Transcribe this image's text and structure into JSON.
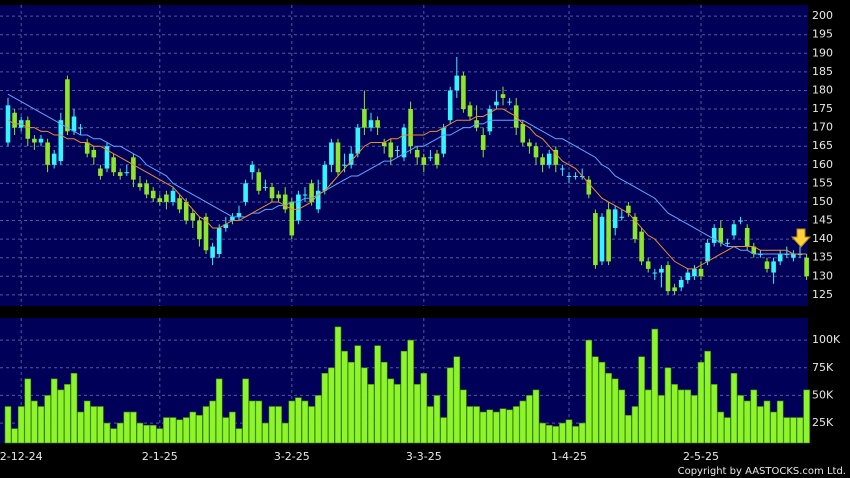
{
  "chart_data": {
    "type": "candlestick",
    "copyright": "Copyright by AASTOCKS.com Ltd.",
    "up_color": "#33f5ff",
    "down_color": "#8ee62a",
    "grid": true,
    "categories": [
      null,
      null,
      "2-12-24",
      null,
      null,
      null,
      null,
      null,
      null,
      null,
      null,
      null,
      null,
      null,
      null,
      null,
      null,
      null,
      null,
      null,
      null,
      null,
      null,
      "2-1-25",
      null,
      null,
      null,
      null,
      null,
      null,
      null,
      null,
      null,
      null,
      null,
      null,
      null,
      null,
      null,
      null,
      null,
      null,
      null,
      "3-2-25",
      null,
      null,
      null,
      null,
      null,
      null,
      null,
      null,
      null,
      null,
      null,
      null,
      null,
      null,
      null,
      null,
      null,
      null,
      null,
      "3-3-25",
      null,
      null,
      null,
      null,
      null,
      null,
      null,
      null,
      null,
      null,
      null,
      null,
      null,
      null,
      null,
      null,
      null,
      null,
      null,
      null,
      null,
      "1-4-25",
      null,
      null,
      null,
      null,
      null,
      null,
      null,
      null,
      null,
      null,
      null,
      null,
      null,
      null,
      null,
      null,
      null,
      null,
      null,
      "2-5-25",
      null,
      null,
      null,
      null,
      null,
      null,
      null,
      null,
      null,
      null,
      null,
      null,
      null,
      null,
      null,
      null
    ],
    "open": [
      166,
      174,
      170,
      172,
      167,
      166,
      166,
      160,
      161,
      183,
      169,
      170,
      166,
      164,
      159,
      159,
      162,
      158,
      158,
      162,
      155,
      155,
      153,
      151,
      152,
      150,
      151,
      150,
      147,
      145,
      146,
      135,
      136,
      143,
      145,
      146,
      150,
      158,
      158,
      154,
      154,
      152,
      152,
      150,
      145,
      152,
      155,
      148,
      153,
      160,
      166,
      160,
      160,
      163,
      175,
      170,
      172,
      166,
      166,
      164,
      162,
      175,
      164,
      162,
      162,
      163,
      163,
      172,
      180,
      184,
      176,
      172,
      168,
      169,
      176,
      179,
      177,
      176,
      171,
      166,
      165,
      162,
      160,
      164,
      159,
      157,
      157,
      157,
      156,
      147,
      134,
      148,
      143,
      146,
      149,
      146,
      142,
      134,
      131,
      131,
      133,
      127,
      127,
      129,
      130,
      132,
      134,
      139,
      143,
      139,
      141,
      145,
      143,
      138,
      136,
      134,
      131,
      134,
      136,
      135,
      136,
      135
    ],
    "high": [
      178,
      175,
      173,
      173,
      168,
      168,
      167,
      164,
      174,
      184,
      175,
      171,
      167,
      165,
      160,
      166,
      163,
      159,
      160,
      163,
      157,
      156,
      154,
      152,
      153,
      154,
      152,
      151,
      148,
      146,
      147,
      139,
      144,
      146,
      147,
      149,
      156,
      161,
      159,
      156,
      155,
      153,
      154,
      151,
      153,
      154,
      156,
      156,
      161,
      167,
      167,
      163,
      165,
      171,
      180,
      174,
      173,
      167,
      167,
      165,
      171,
      177,
      165,
      163,
      164,
      164,
      171,
      181,
      189,
      185,
      177,
      176,
      170,
      176,
      180,
      181,
      178,
      178,
      172,
      167,
      166,
      163,
      164,
      165,
      160,
      158,
      158,
      159,
      157,
      148,
      147,
      150,
      149,
      148,
      150,
      147,
      143,
      135,
      132,
      133,
      134,
      128,
      130,
      132,
      133,
      134,
      140,
      144,
      145,
      140,
      145,
      146,
      144,
      139,
      137,
      135,
      135,
      137,
      138,
      137,
      138,
      136
    ],
    "low": [
      165,
      168,
      169,
      165,
      164,
      165,
      158,
      159,
      160,
      168,
      168,
      168,
      162,
      160,
      156,
      158,
      157,
      156,
      157,
      154,
      153,
      151,
      150,
      149,
      148,
      149,
      147,
      144,
      143,
      138,
      136,
      133,
      135,
      142,
      144,
      145,
      149,
      156,
      152,
      153,
      150,
      150,
      147,
      140,
      144,
      150,
      149,
      147,
      152,
      158,
      157,
      158,
      159,
      162,
      168,
      169,
      168,
      163,
      160,
      162,
      161,
      163,
      160,
      158,
      161,
      159,
      162,
      171,
      178,
      174,
      172,
      169,
      162,
      168,
      175,
      176,
      176,
      168,
      165,
      163,
      160,
      158,
      159,
      158,
      157,
      155,
      156,
      156,
      151,
      132,
      133,
      133,
      141,
      145,
      146,
      139,
      133,
      131,
      129,
      127,
      125,
      125,
      126,
      128,
      129,
      129,
      133,
      138,
      138,
      138,
      140,
      144,
      137,
      135,
      135,
      131,
      128,
      133,
      135,
      134,
      135,
      129
    ],
    "close": [
      176,
      170,
      172,
      167,
      166,
      167,
      160,
      163,
      172,
      169,
      173,
      170,
      163,
      162,
      157,
      165,
      158,
      157,
      158,
      156,
      154,
      152,
      151,
      150,
      150,
      153,
      148,
      145,
      145,
      140,
      137,
      138,
      143,
      144,
      146,
      147,
      155,
      160,
      153,
      154,
      151,
      151,
      148,
      141,
      152,
      152,
      150,
      153,
      160,
      166,
      158,
      160,
      163,
      170,
      170,
      172,
      170,
      165,
      162,
      164,
      170,
      165,
      162,
      160,
      162,
      160,
      170,
      180,
      184,
      175,
      173,
      170,
      164,
      175,
      177,
      178,
      177,
      170,
      166,
      165,
      162,
      160,
      163,
      160,
      159,
      157,
      157,
      157,
      152,
      133,
      146,
      134,
      148,
      146,
      147,
      140,
      134,
      132,
      131,
      132,
      126,
      126,
      129,
      131,
      132,
      130,
      139,
      143,
      139,
      139,
      144,
      145,
      138,
      136,
      136,
      132,
      134,
      136,
      136,
      136,
      136,
      130
    ],
    "series": [
      {
        "color": "#5aa8ff",
        "values": [
          179,
          178,
          177,
          176,
          175,
          174,
          173,
          172,
          171,
          170,
          169,
          168,
          168,
          167,
          167,
          166,
          165,
          165,
          164,
          163,
          162,
          160,
          159,
          158,
          157,
          155,
          154,
          153,
          152,
          151,
          150,
          149,
          148,
          147,
          146,
          146,
          146,
          147,
          147,
          148,
          148,
          149,
          149,
          150,
          150,
          151,
          151,
          152,
          153,
          154,
          155,
          156,
          157,
          157,
          158,
          159,
          160,
          161,
          161,
          162,
          163,
          164,
          165,
          165,
          166,
          167,
          168,
          168,
          169,
          170,
          170,
          171,
          171,
          172,
          172,
          172,
          172,
          172,
          172,
          171,
          170,
          169,
          168,
          167,
          167,
          166,
          165,
          164,
          163,
          162,
          160,
          159,
          157,
          156,
          155,
          154,
          153,
          152,
          151,
          149,
          147,
          146,
          145,
          144,
          143,
          142,
          141,
          140,
          139,
          138,
          138,
          137,
          137,
          136,
          136,
          136,
          136,
          136,
          136,
          136,
          136,
          136
        ]
      },
      {
        "color": "#f08a2c",
        "values": [
          172,
          171,
          171,
          170,
          170,
          169,
          169,
          168,
          168,
          167,
          167,
          166,
          166,
          165,
          165,
          164,
          163,
          162,
          161,
          160,
          159,
          158,
          157,
          156,
          155,
          154,
          152,
          150,
          148,
          146,
          145,
          143,
          143,
          144,
          145,
          145,
          146,
          147,
          148,
          149,
          150,
          150,
          149,
          148,
          148,
          149,
          150,
          152,
          153,
          155,
          157,
          159,
          161,
          163,
          165,
          166,
          166,
          166,
          167,
          167,
          168,
          168,
          168,
          168,
          169,
          169,
          170,
          171,
          172,
          172,
          172,
          173,
          173,
          174,
          175,
          175,
          174,
          173,
          171,
          170,
          168,
          167,
          165,
          163,
          161,
          160,
          159,
          157,
          155,
          153,
          151,
          150,
          149,
          148,
          147,
          145,
          143,
          141,
          140,
          138,
          136,
          134,
          133,
          132,
          132,
          133,
          134,
          135,
          136,
          137,
          138,
          138,
          138,
          138,
          137,
          137,
          137,
          137,
          137,
          136,
          136,
          136
        ]
      }
    ],
    "ylim": [
      122,
      203
    ],
    "yticks": [
      125,
      130,
      135,
      140,
      145,
      150,
      155,
      160,
      165,
      170,
      175,
      180,
      185,
      190,
      195,
      200
    ],
    "volume": {
      "color": "#8ef52a",
      "values": [
        40000,
        20000,
        40000,
        65000,
        45000,
        40000,
        50000,
        65000,
        55000,
        60000,
        70000,
        35000,
        45000,
        40000,
        40000,
        25000,
        20000,
        25000,
        35000,
        35000,
        25000,
        23000,
        23000,
        20000,
        30000,
        30000,
        28000,
        30000,
        35000,
        32000,
        40000,
        45000,
        65000,
        30000,
        35000,
        20000,
        65000,
        45000,
        45000,
        25000,
        40000,
        40000,
        25000,
        45000,
        48000,
        45000,
        40000,
        50000,
        70000,
        75000,
        112000,
        90000,
        80000,
        95000,
        75000,
        60000,
        95000,
        80000,
        65000,
        60000,
        90000,
        100000,
        60000,
        70000,
        40000,
        50000,
        30000,
        75000,
        85000,
        55000,
        40000,
        40000,
        35000,
        37000,
        35000,
        38000,
        37000,
        40000,
        45000,
        50000,
        55000,
        25000,
        23000,
        22000,
        25000,
        28000,
        22000,
        25000,
        100000,
        85000,
        80000,
        70000,
        65000,
        55000,
        32000,
        40000,
        85000,
        55000,
        110000,
        50000,
        75000,
        60000,
        55000,
        55000,
        50000,
        80000,
        90000,
        60000,
        35000,
        30000,
        70000,
        50000,
        45000,
        55000,
        40000,
        45000,
        35000,
        45000,
        30000,
        30000,
        30000,
        55000
      ],
      "ylim": [
        7000,
        120000
      ],
      "yticks": [
        {
          "value": 25000,
          "label": "25K"
        },
        {
          "value": 50000,
          "label": "50K"
        },
        {
          "value": 75000,
          "label": "75K"
        },
        {
          "value": 100000,
          "label": "100K"
        }
      ]
    }
  }
}
